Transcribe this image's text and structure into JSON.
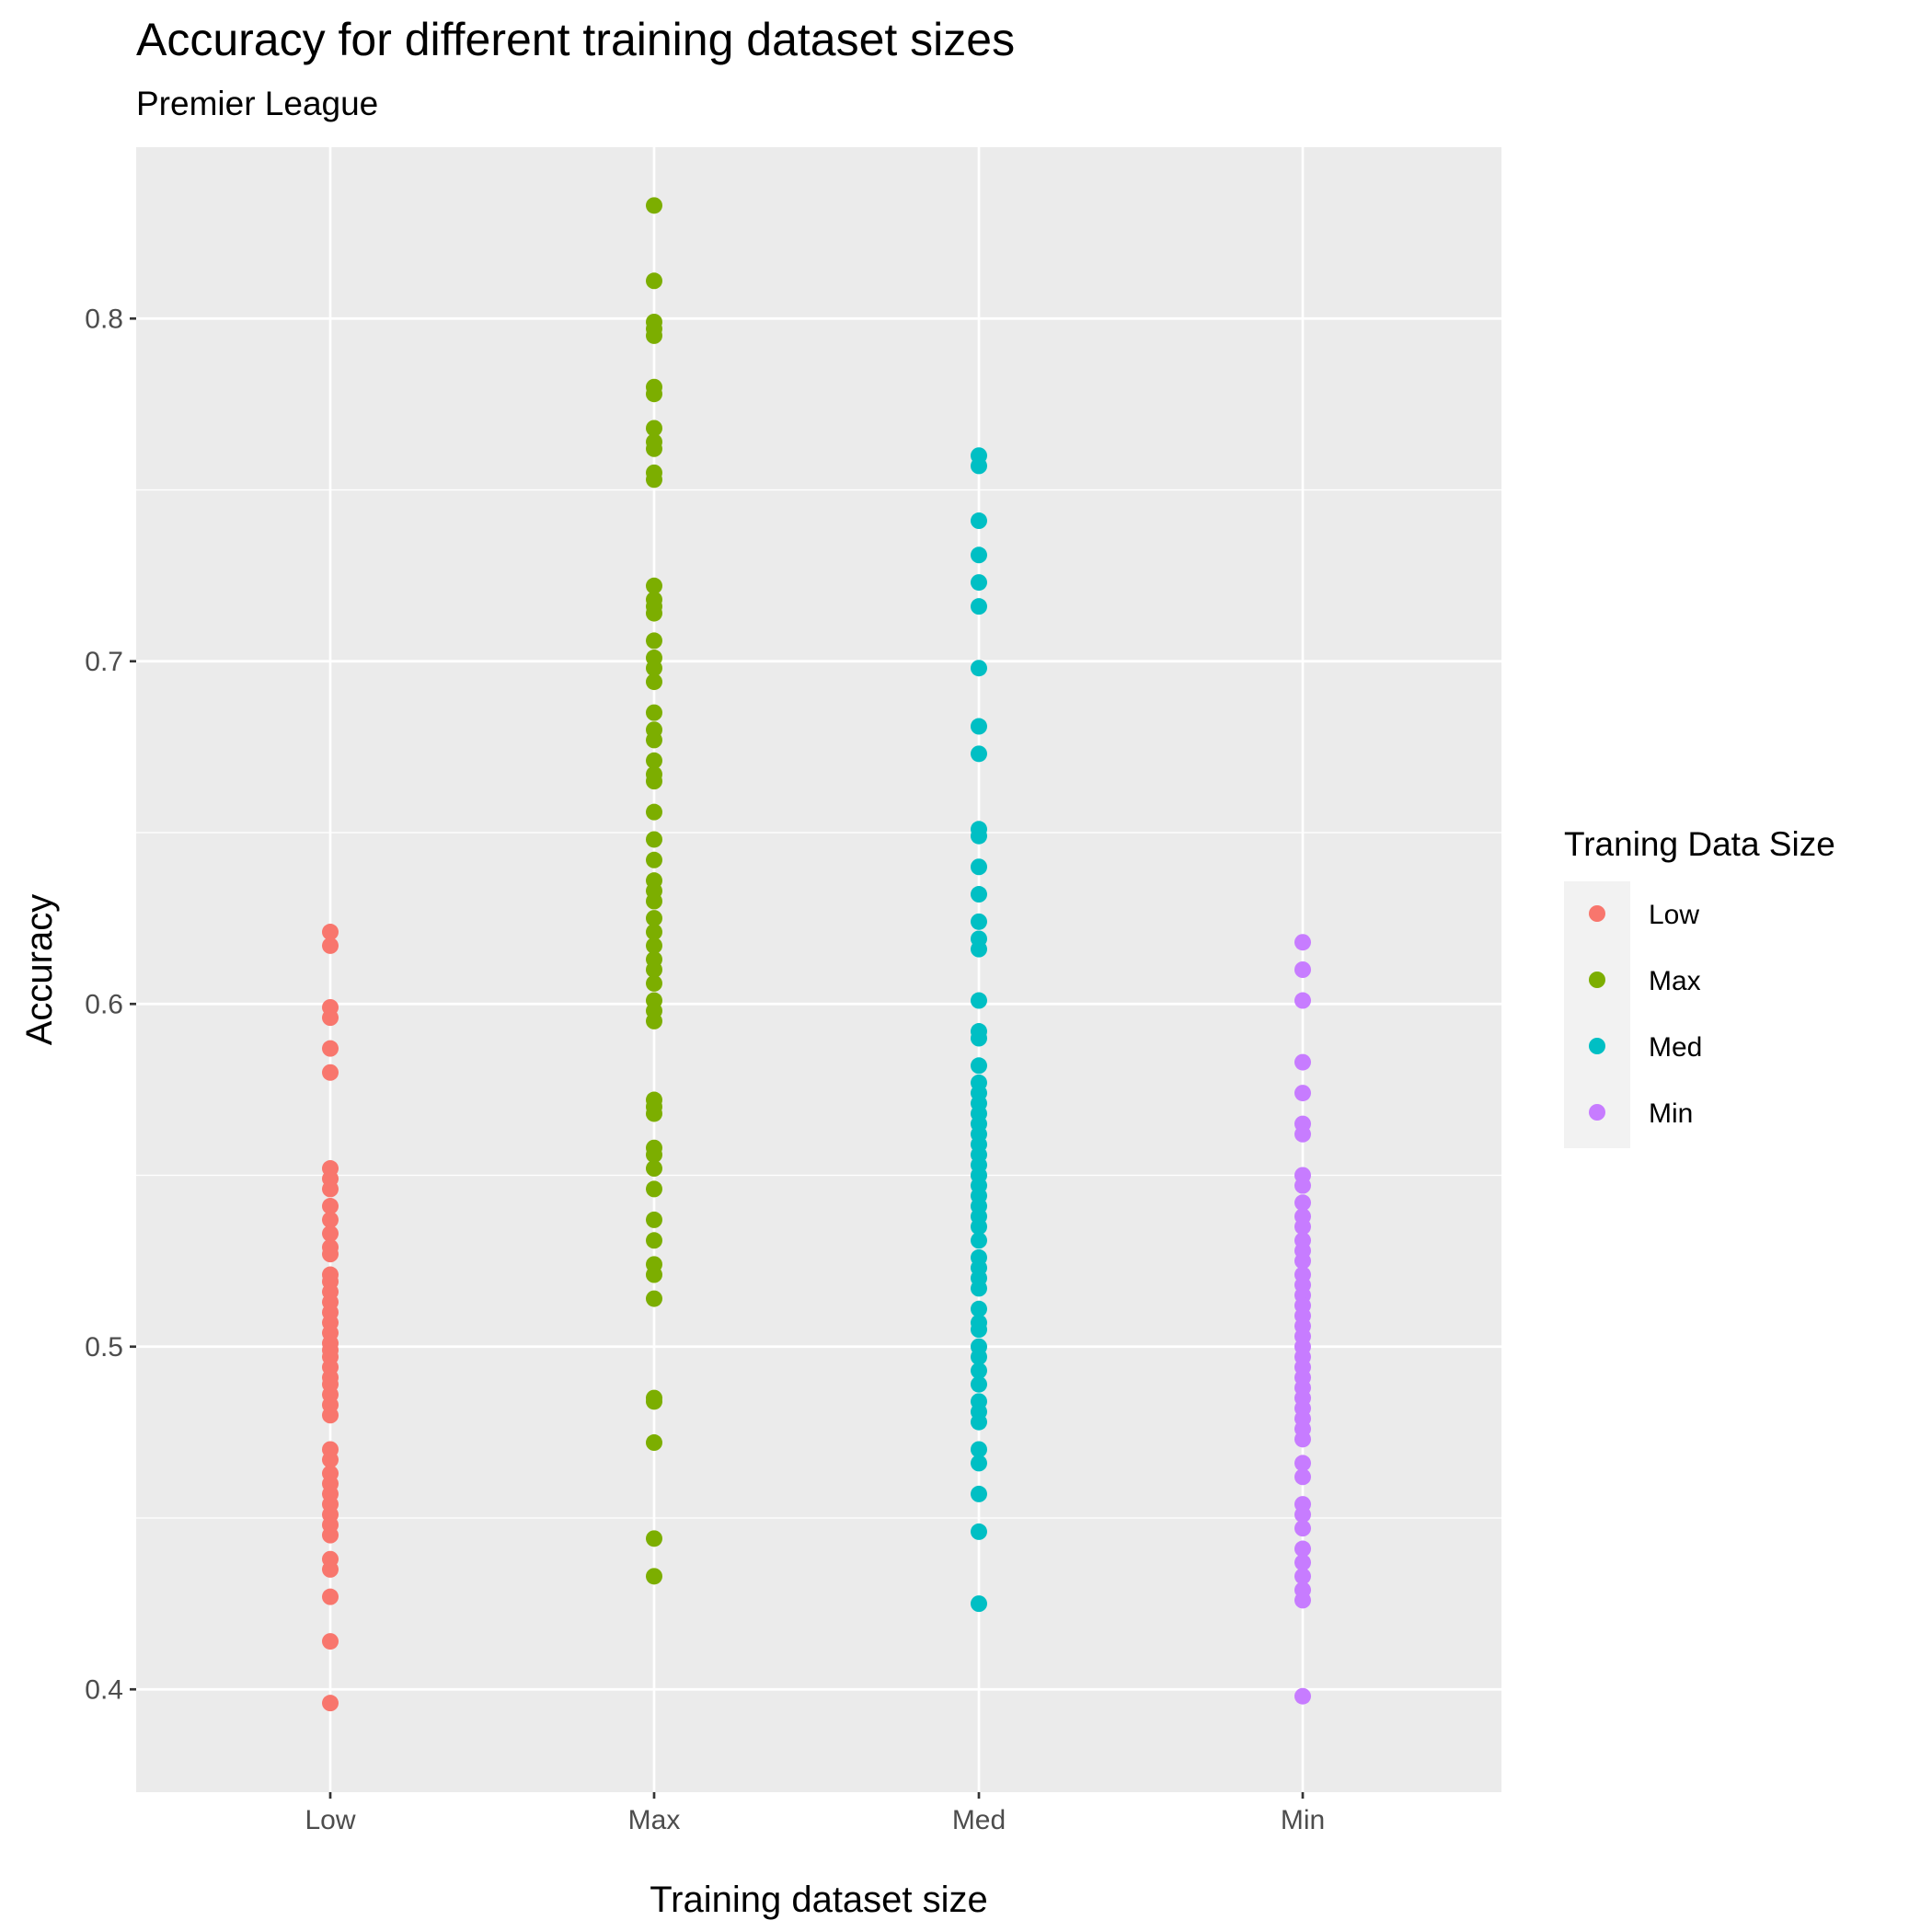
{
  "chart_data": {
    "type": "scatter",
    "title": "Accuracy for different training dataset sizes",
    "subtitle": "Premier League",
    "xlabel": "Training dataset size",
    "ylabel": "Accuracy",
    "categories": [
      "Low",
      "Max",
      "Med",
      "Min"
    ],
    "ylim": [
      0.37,
      0.85
    ],
    "yticks": [
      0.4,
      0.5,
      0.6,
      0.7,
      0.8
    ],
    "ytick_labels": [
      "0.4",
      "0.5",
      "0.6",
      "0.7",
      "0.8"
    ],
    "grid": true,
    "background": "#ebebeb",
    "legend": {
      "title": "Traning Data Size",
      "position": "right",
      "entries": [
        "Low",
        "Max",
        "Med",
        "Min"
      ]
    },
    "series": [
      {
        "name": "Low",
        "color": "#f8766d",
        "x": "Low",
        "values": [
          0.621,
          0.617,
          0.599,
          0.596,
          0.587,
          0.58,
          0.552,
          0.549,
          0.546,
          0.541,
          0.537,
          0.533,
          0.529,
          0.527,
          0.521,
          0.519,
          0.516,
          0.513,
          0.51,
          0.507,
          0.504,
          0.501,
          0.499,
          0.497,
          0.494,
          0.491,
          0.489,
          0.486,
          0.483,
          0.48,
          0.47,
          0.467,
          0.463,
          0.46,
          0.457,
          0.454,
          0.451,
          0.448,
          0.445,
          0.438,
          0.435,
          0.427,
          0.414,
          0.396
        ]
      },
      {
        "name": "Max",
        "color": "#7cae00",
        "x": "Max",
        "values": [
          0.833,
          0.811,
          0.799,
          0.797,
          0.795,
          0.78,
          0.778,
          0.768,
          0.764,
          0.762,
          0.755,
          0.753,
          0.722,
          0.718,
          0.716,
          0.714,
          0.706,
          0.701,
          0.698,
          0.694,
          0.685,
          0.68,
          0.677,
          0.671,
          0.667,
          0.665,
          0.656,
          0.648,
          0.642,
          0.636,
          0.633,
          0.63,
          0.625,
          0.621,
          0.617,
          0.613,
          0.61,
          0.606,
          0.601,
          0.598,
          0.595,
          0.572,
          0.57,
          0.568,
          0.558,
          0.556,
          0.552,
          0.546,
          0.537,
          0.531,
          0.524,
          0.521,
          0.514,
          0.485,
          0.484,
          0.472,
          0.444,
          0.433
        ]
      },
      {
        "name": "Med",
        "color": "#00bfc4",
        "x": "Med",
        "values": [
          0.76,
          0.757,
          0.741,
          0.731,
          0.723,
          0.716,
          0.698,
          0.681,
          0.673,
          0.651,
          0.649,
          0.64,
          0.632,
          0.624,
          0.619,
          0.616,
          0.601,
          0.592,
          0.59,
          0.582,
          0.577,
          0.574,
          0.571,
          0.568,
          0.565,
          0.562,
          0.559,
          0.556,
          0.553,
          0.55,
          0.547,
          0.544,
          0.541,
          0.538,
          0.535,
          0.531,
          0.526,
          0.523,
          0.52,
          0.517,
          0.511,
          0.507,
          0.505,
          0.5,
          0.497,
          0.493,
          0.489,
          0.484,
          0.481,
          0.478,
          0.47,
          0.466,
          0.457,
          0.446,
          0.425
        ]
      },
      {
        "name": "Min",
        "color": "#c77cff",
        "x": "Min",
        "values": [
          0.618,
          0.61,
          0.601,
          0.583,
          0.574,
          0.565,
          0.562,
          0.55,
          0.547,
          0.542,
          0.538,
          0.535,
          0.531,
          0.528,
          0.525,
          0.521,
          0.518,
          0.515,
          0.512,
          0.509,
          0.506,
          0.503,
          0.5,
          0.497,
          0.494,
          0.491,
          0.488,
          0.485,
          0.482,
          0.479,
          0.476,
          0.473,
          0.466,
          0.462,
          0.454,
          0.451,
          0.447,
          0.441,
          0.437,
          0.433,
          0.429,
          0.426,
          0.398
        ]
      }
    ]
  }
}
